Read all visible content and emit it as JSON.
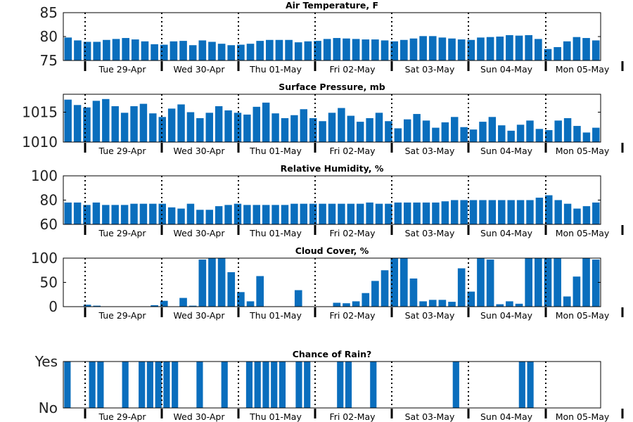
{
  "chart_data": [
    {
      "type": "bar",
      "title": "Air Temperature, F",
      "ylim": [
        75,
        85
      ],
      "yticks": [
        "75",
        "80",
        "85"
      ],
      "x_labels": [
        "Tue 29-Apr",
        "Wed 30-Apr",
        "Thu 01-May",
        "Fri 02-May",
        "Sat 03-May",
        "Sun 04-May",
        "Mon 05-May"
      ],
      "values": [
        79.8,
        79.2,
        78.9,
        78.9,
        79.3,
        79.5,
        79.7,
        79.4,
        79.0,
        78.4,
        78.3,
        79.0,
        79.1,
        78.2,
        79.2,
        78.9,
        78.5,
        78.2,
        78.3,
        78.5,
        79.1,
        79.3,
        79.3,
        79.3,
        78.8,
        79.0,
        79.1,
        79.5,
        79.7,
        79.6,
        79.5,
        79.4,
        79.4,
        79.2,
        79.0,
        79.3,
        79.6,
        80.1,
        80.1,
        79.8,
        79.6,
        79.4,
        79.3,
        79.8,
        79.9,
        80.0,
        80.3,
        80.2,
        80.3,
        79.5,
        77.4,
        77.8,
        79.0,
        79.9,
        79.7,
        79.2
      ],
      "grid": false
    },
    {
      "type": "bar",
      "title": "Surface Pressure, mb",
      "ylim": [
        1010,
        1018
      ],
      "yticks": [
        "1010",
        "1015"
      ],
      "x_labels": [
        "Tue 29-Apr",
        "Wed 30-Apr",
        "Thu 01-May",
        "Fri 02-May",
        "Sat 03-May",
        "Sun 04-May",
        "Mon 05-May"
      ],
      "values": [
        1017.1,
        1016.2,
        1015.8,
        1016.9,
        1017.2,
        1016.0,
        1014.9,
        1016.0,
        1016.4,
        1014.8,
        1014.2,
        1015.6,
        1016.3,
        1015.0,
        1014.0,
        1014.9,
        1016.0,
        1015.3,
        1014.9,
        1014.6,
        1015.9,
        1016.6,
        1014.8,
        1014.0,
        1014.5,
        1015.5,
        1014.0,
        1013.5,
        1014.9,
        1015.7,
        1014.4,
        1013.4,
        1014.0,
        1014.9,
        1013.5,
        1012.3,
        1013.8,
        1014.7,
        1013.6,
        1012.4,
        1013.3,
        1014.2,
        1012.5,
        1012.1,
        1013.4,
        1014.2,
        1012.8,
        1011.9,
        1012.9,
        1013.6,
        1012.2,
        1012.0,
        1013.6,
        1014.0,
        1012.7,
        1011.6,
        1012.4
      ],
      "grid": false
    },
    {
      "type": "bar",
      "title": "Relative Humidity, %",
      "ylim": [
        60,
        100
      ],
      "yticks": [
        "60",
        "80",
        "100"
      ],
      "x_labels": [
        "Tue 29-Apr",
        "Wed 30-Apr",
        "Thu 01-May",
        "Fri 02-May",
        "Sat 03-May",
        "Sun 04-May",
        "Mon 05-May"
      ],
      "values": [
        78,
        78,
        76,
        78,
        76,
        76,
        76,
        77,
        77,
        77,
        77,
        74,
        73,
        77,
        72,
        72,
        75,
        76,
        77,
        76,
        76,
        76,
        76,
        76,
        77,
        77,
        77,
        77,
        77,
        77,
        77,
        77,
        78,
        77,
        77,
        78,
        78,
        78,
        78,
        78,
        79,
        80,
        80,
        80,
        80,
        80,
        80,
        80,
        80,
        80,
        82,
        84,
        80,
        77,
        73,
        75,
        78
      ],
      "grid": false
    },
    {
      "type": "bar",
      "title": "Cloud Cover, %",
      "ylim": [
        0,
        100
      ],
      "yticks": [
        "0",
        "50",
        "100"
      ],
      "x_labels": [
        "Tue 29-Apr",
        "Wed 30-Apr",
        "Thu 01-May",
        "Fri 02-May",
        "Sat 03-May",
        "Sun 04-May",
        "Mon 05-May"
      ],
      "values": [
        0,
        0,
        4,
        2,
        0,
        0,
        0,
        0,
        0,
        3,
        12,
        0,
        18,
        2,
        97,
        100,
        100,
        71,
        30,
        11,
        63,
        0,
        0,
        0,
        34,
        0,
        0,
        0,
        8,
        7,
        11,
        28,
        53,
        75,
        100,
        100,
        58,
        11,
        14,
        14,
        10,
        79,
        31,
        100,
        97,
        5,
        11,
        6,
        100,
        100,
        100,
        100,
        21,
        62,
        100,
        97
      ],
      "grid": false
    },
    {
      "type": "bar",
      "title": "Chance of Rain?",
      "ylim": [
        0,
        1
      ],
      "yticks": [
        "No",
        "Yes"
      ],
      "x_labels": [
        "Tue 29-Apr",
        "Wed 30-Apr",
        "Thu 01-May",
        "Fri 02-May",
        "Sat 03-May",
        "Sun 04-May",
        "Mon 05-May"
      ],
      "values": [
        1,
        0,
        0,
        1,
        1,
        0,
        0,
        1,
        0,
        1,
        1,
        1,
        1,
        1,
        0,
        0,
        1,
        0,
        0,
        1,
        0,
        0,
        1,
        1,
        1,
        1,
        1,
        0,
        1,
        1,
        0,
        0,
        0,
        1,
        1,
        0,
        0,
        1,
        0,
        0,
        0,
        0,
        0,
        0,
        0,
        0,
        0,
        1,
        0,
        0,
        0,
        0,
        0,
        0,
        0,
        1,
        1,
        0,
        0,
        0,
        0,
        0,
        0,
        0,
        0
      ],
      "grid": false
    }
  ],
  "colors": {
    "bar": "#0a6ebd",
    "text": "#000000",
    "tick": "#000000"
  }
}
